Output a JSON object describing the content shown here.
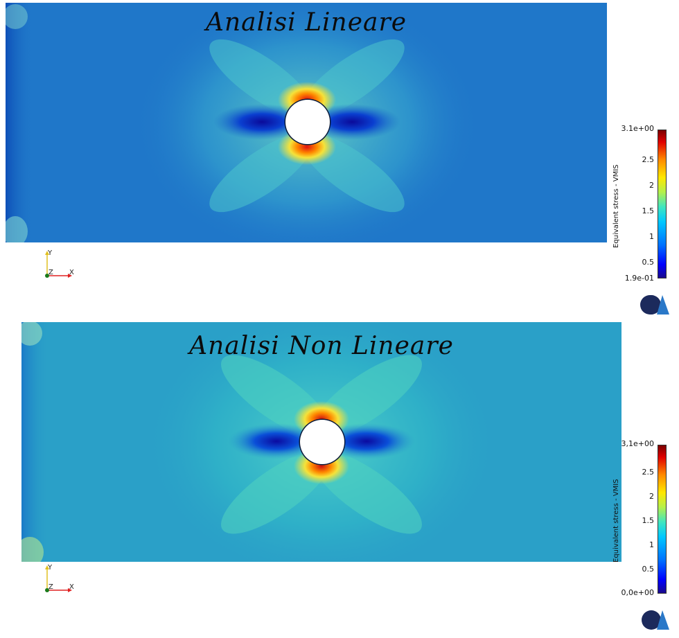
{
  "top_panel": {
    "title": "Analisi Lineare",
    "colorbar": {
      "label": "Equivalent stress - VMIS",
      "ticks": [
        "3.1e+00",
        "2.5",
        "2",
        "1.5",
        "1",
        "0.5",
        "1.9e-01"
      ]
    },
    "axes": {
      "x": "X",
      "y": "Y",
      "z": "Z"
    }
  },
  "bottom_panel": {
    "title": "Analisi Non Lineare",
    "colorbar": {
      "label": "Equivalent stress - VMIS",
      "ticks": [
        "3,1e+00",
        "2.5",
        "2",
        "1.5",
        "1",
        "0.5",
        "0,0e+00"
      ]
    },
    "axes": {
      "x": "X",
      "y": "Y",
      "z": "Z"
    }
  },
  "colors": {
    "base_top": "#1f77c9",
    "base_bottom": "#2aa0c8",
    "hot": "#d01010",
    "cold": "#0a10a0"
  },
  "icons": [
    "logo-icon",
    "axes-triad-icon"
  ]
}
